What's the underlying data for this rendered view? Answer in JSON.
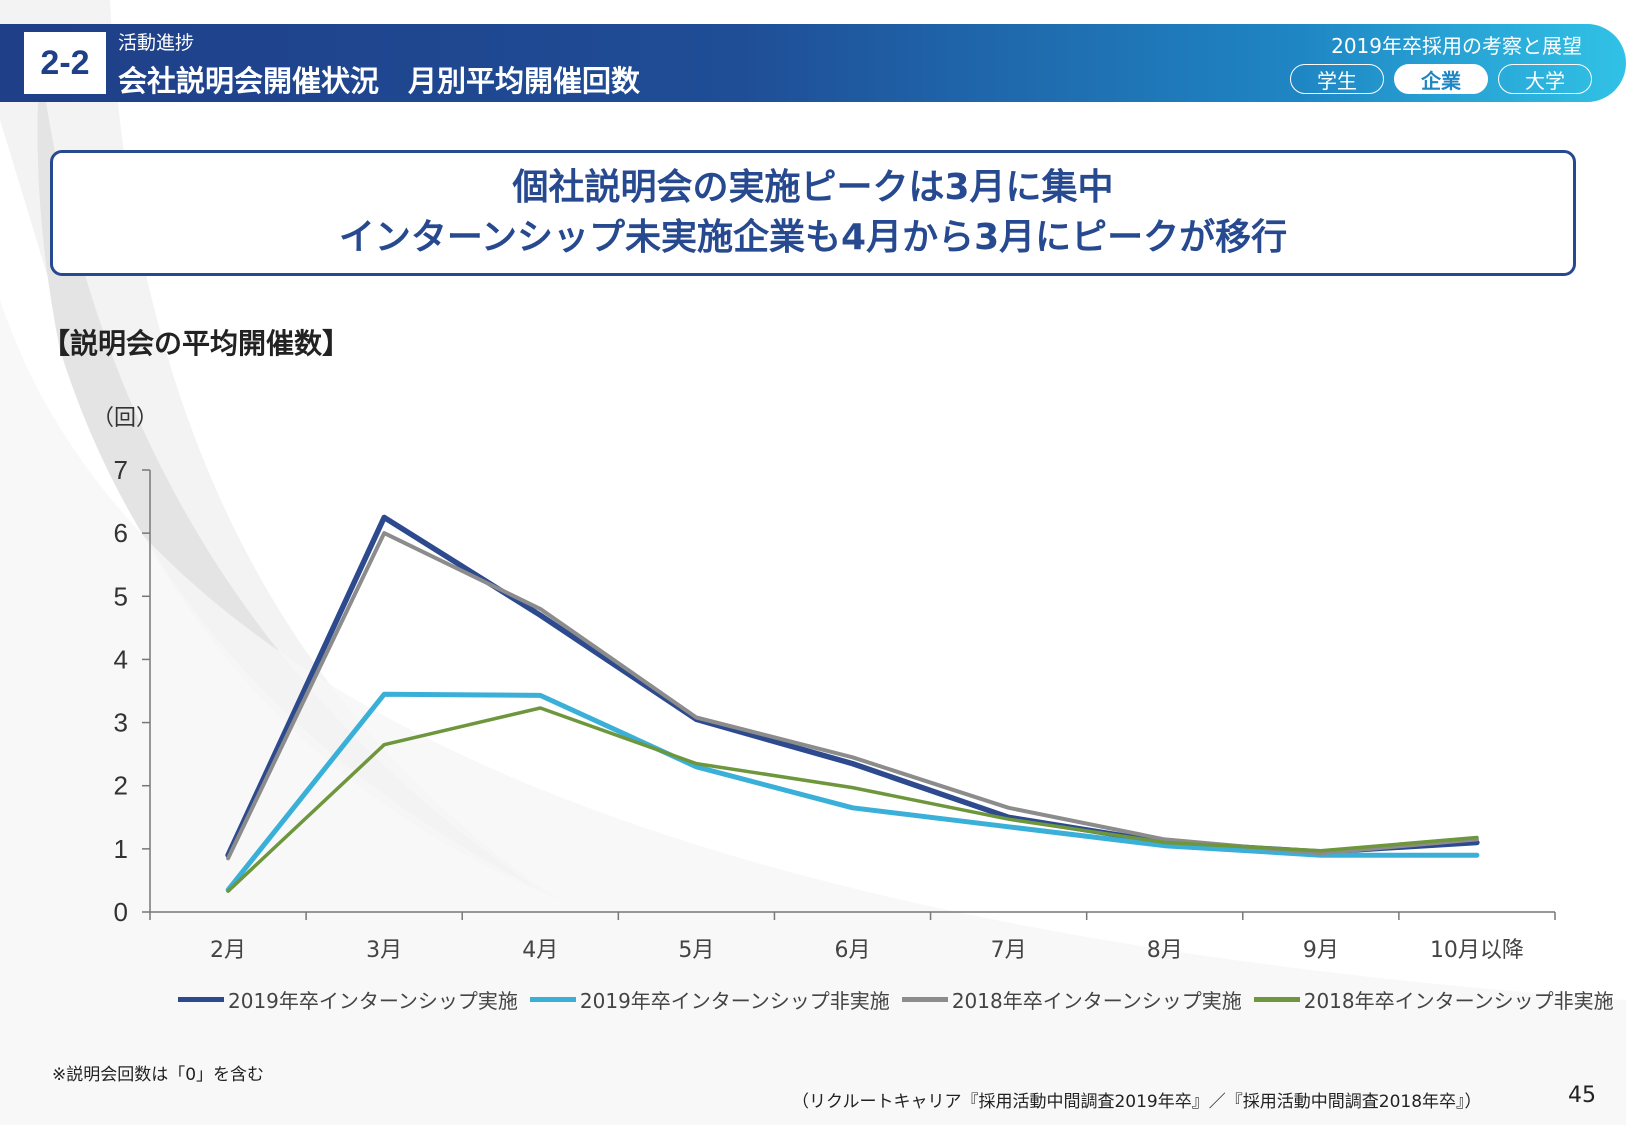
{
  "colors": {
    "header_start": "#1f3f88",
    "header_end": "#31c2e6",
    "headline": "#27498f",
    "series_2019_intern": "#2d4a8f",
    "series_2019_non_intern": "#3ab0d8",
    "series_2018_intern": "#8c8c8c",
    "series_2018_non_intern": "#6e963c"
  },
  "header": {
    "section_number": "2-2",
    "subtitle": "活動進捗",
    "title": "会社説明会開催状況　月別平均開催回数",
    "report_title": "2019年卒採用の考察と展望",
    "tabs": [
      {
        "label": "学生",
        "active": false
      },
      {
        "label": "企業",
        "active": true
      },
      {
        "label": "大学",
        "active": false
      }
    ]
  },
  "headline": {
    "line1": "個社説明会の実施ピークは3月に集中",
    "line2": "インターンシップ未実施企業も4月から3月にピークが移行"
  },
  "chart_heading": "【説明会の平均開催数】",
  "chart_data": {
    "type": "line",
    "title": "【説明会の平均開催数】",
    "ylabel": "（回）",
    "xlabel": "",
    "ylim": [
      0,
      7
    ],
    "yticks": [
      0,
      1,
      2,
      3,
      4,
      5,
      6,
      7
    ],
    "grid": false,
    "legend_position": "bottom",
    "categories": [
      "2月",
      "3月",
      "4月",
      "5月",
      "6月",
      "7月",
      "8月",
      "9月",
      "10月以降"
    ],
    "series": [
      {
        "name": "2019年卒インターンシップ実施",
        "color": "#2d4a8f",
        "values": [
          0.9,
          6.25,
          4.7,
          3.05,
          2.35,
          1.5,
          1.1,
          0.95,
          1.1
        ]
      },
      {
        "name": "2019年卒インターンシップ非実施",
        "color": "#3ab0d8",
        "values": [
          0.35,
          3.45,
          3.43,
          2.3,
          1.65,
          1.35,
          1.05,
          0.9,
          0.9
        ]
      },
      {
        "name": "2018年卒インターンシップ実施",
        "color": "#8c8c8c",
        "values": [
          0.85,
          6.0,
          4.8,
          3.08,
          2.45,
          1.65,
          1.15,
          0.93,
          1.15
        ]
      },
      {
        "name": "2018年卒インターンシップ非実施",
        "color": "#6e963c",
        "values": [
          0.33,
          2.65,
          3.23,
          2.35,
          1.97,
          1.47,
          1.1,
          0.97,
          1.18
        ]
      }
    ]
  },
  "footnote": "※説明会回数は「0」を含む",
  "source": "（リクルートキャリア『採用活動中間調査2019年卒』／『採用活動中間調査2018年卒』）",
  "page_number": "45"
}
